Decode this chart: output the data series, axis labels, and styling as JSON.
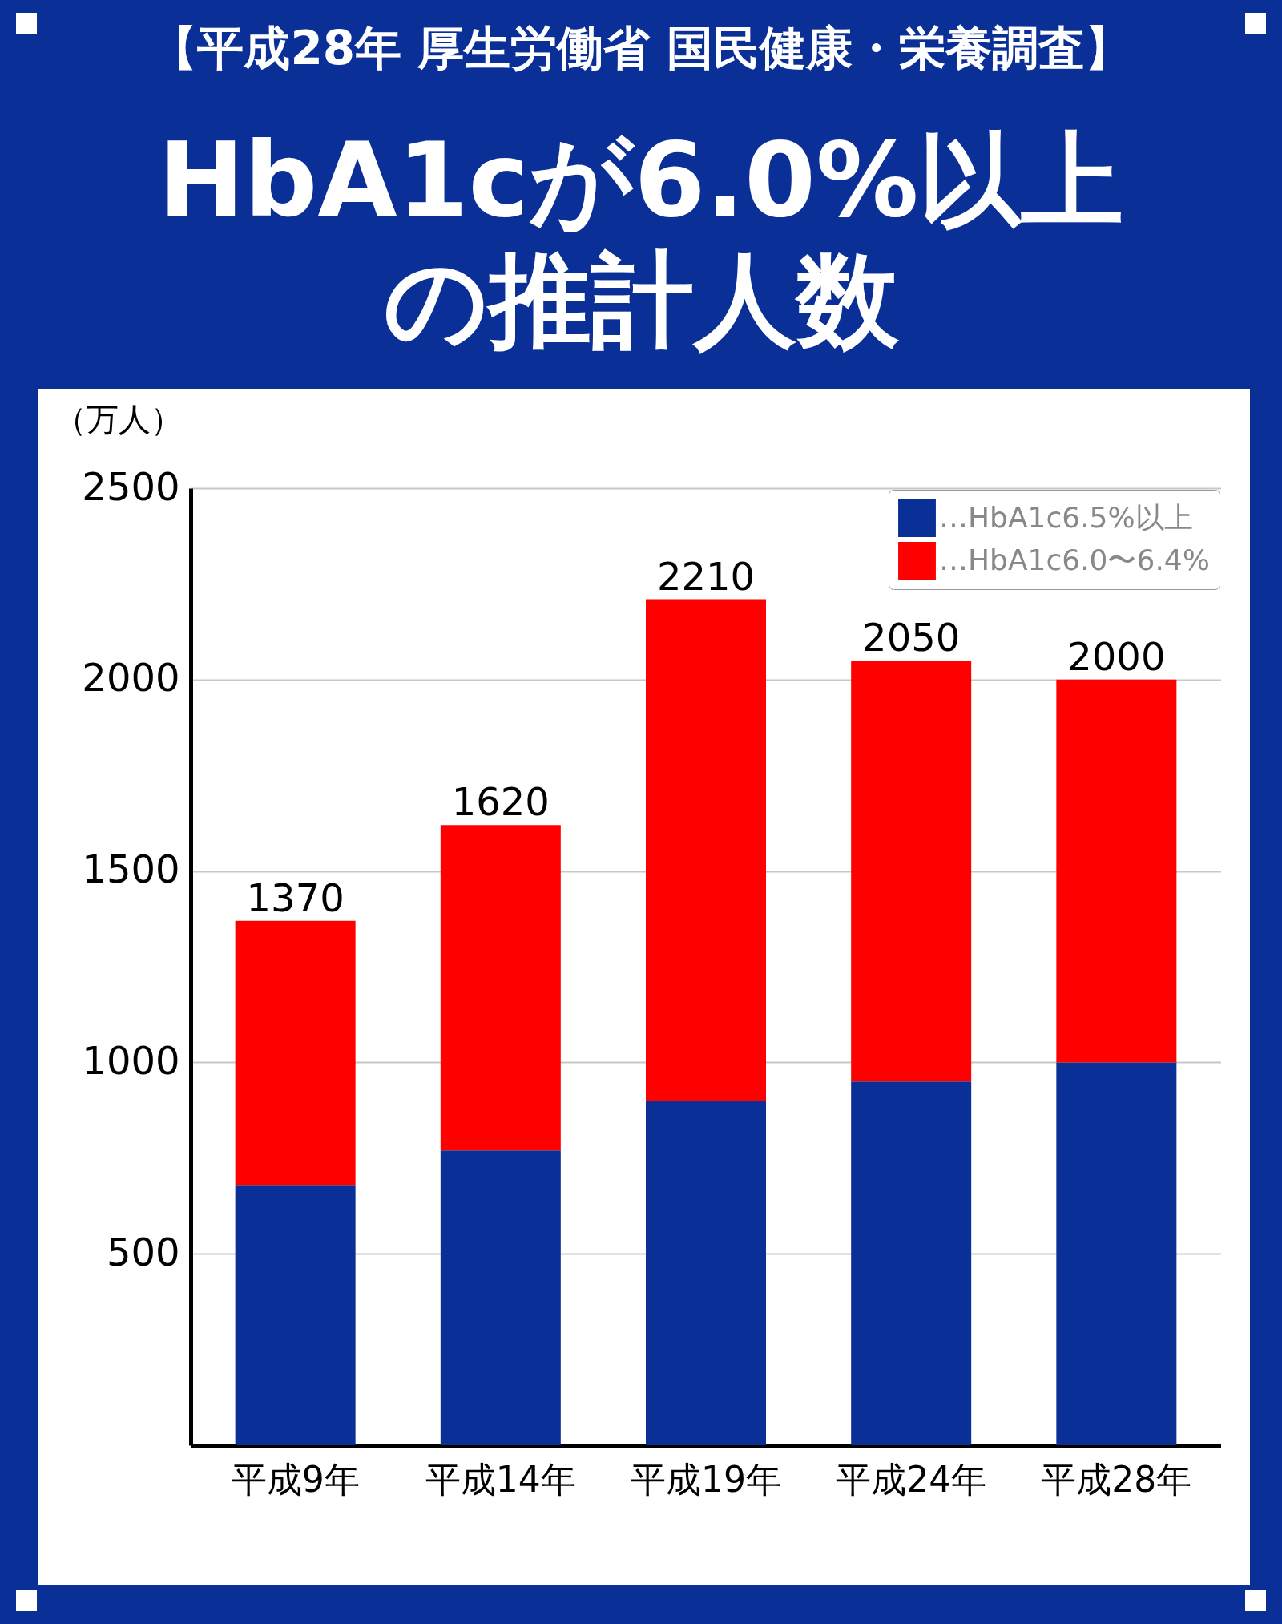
{
  "chart_data": {
    "type": "bar",
    "stacked": true,
    "subtitle": "【平成28年 厚生労働省 国民健康・栄養調査】",
    "title": "HbA1cが6.0%以上の推計人数",
    "ylabel": "（万人）",
    "categories": [
      "平成9年",
      "平成14年",
      "平成19年",
      "平成24年",
      "平成28年"
    ],
    "series": [
      {
        "name": "…HbA1c6.5%以上",
        "color": "#0a2f96",
        "values": [
          680,
          770,
          900,
          950,
          1000
        ]
      },
      {
        "name": "…HbA1c6.0〜6.4%",
        "color": "#ff0000",
        "values": [
          690,
          850,
          1310,
          1100,
          1000
        ]
      }
    ],
    "totals": [
      "1370",
      "1620",
      "2210",
      "2050",
      "2000"
    ],
    "ylim": [
      0,
      2500
    ],
    "yticks": [
      500,
      1000,
      1500,
      2000,
      2500
    ],
    "grid": "y",
    "legend": "top right"
  }
}
